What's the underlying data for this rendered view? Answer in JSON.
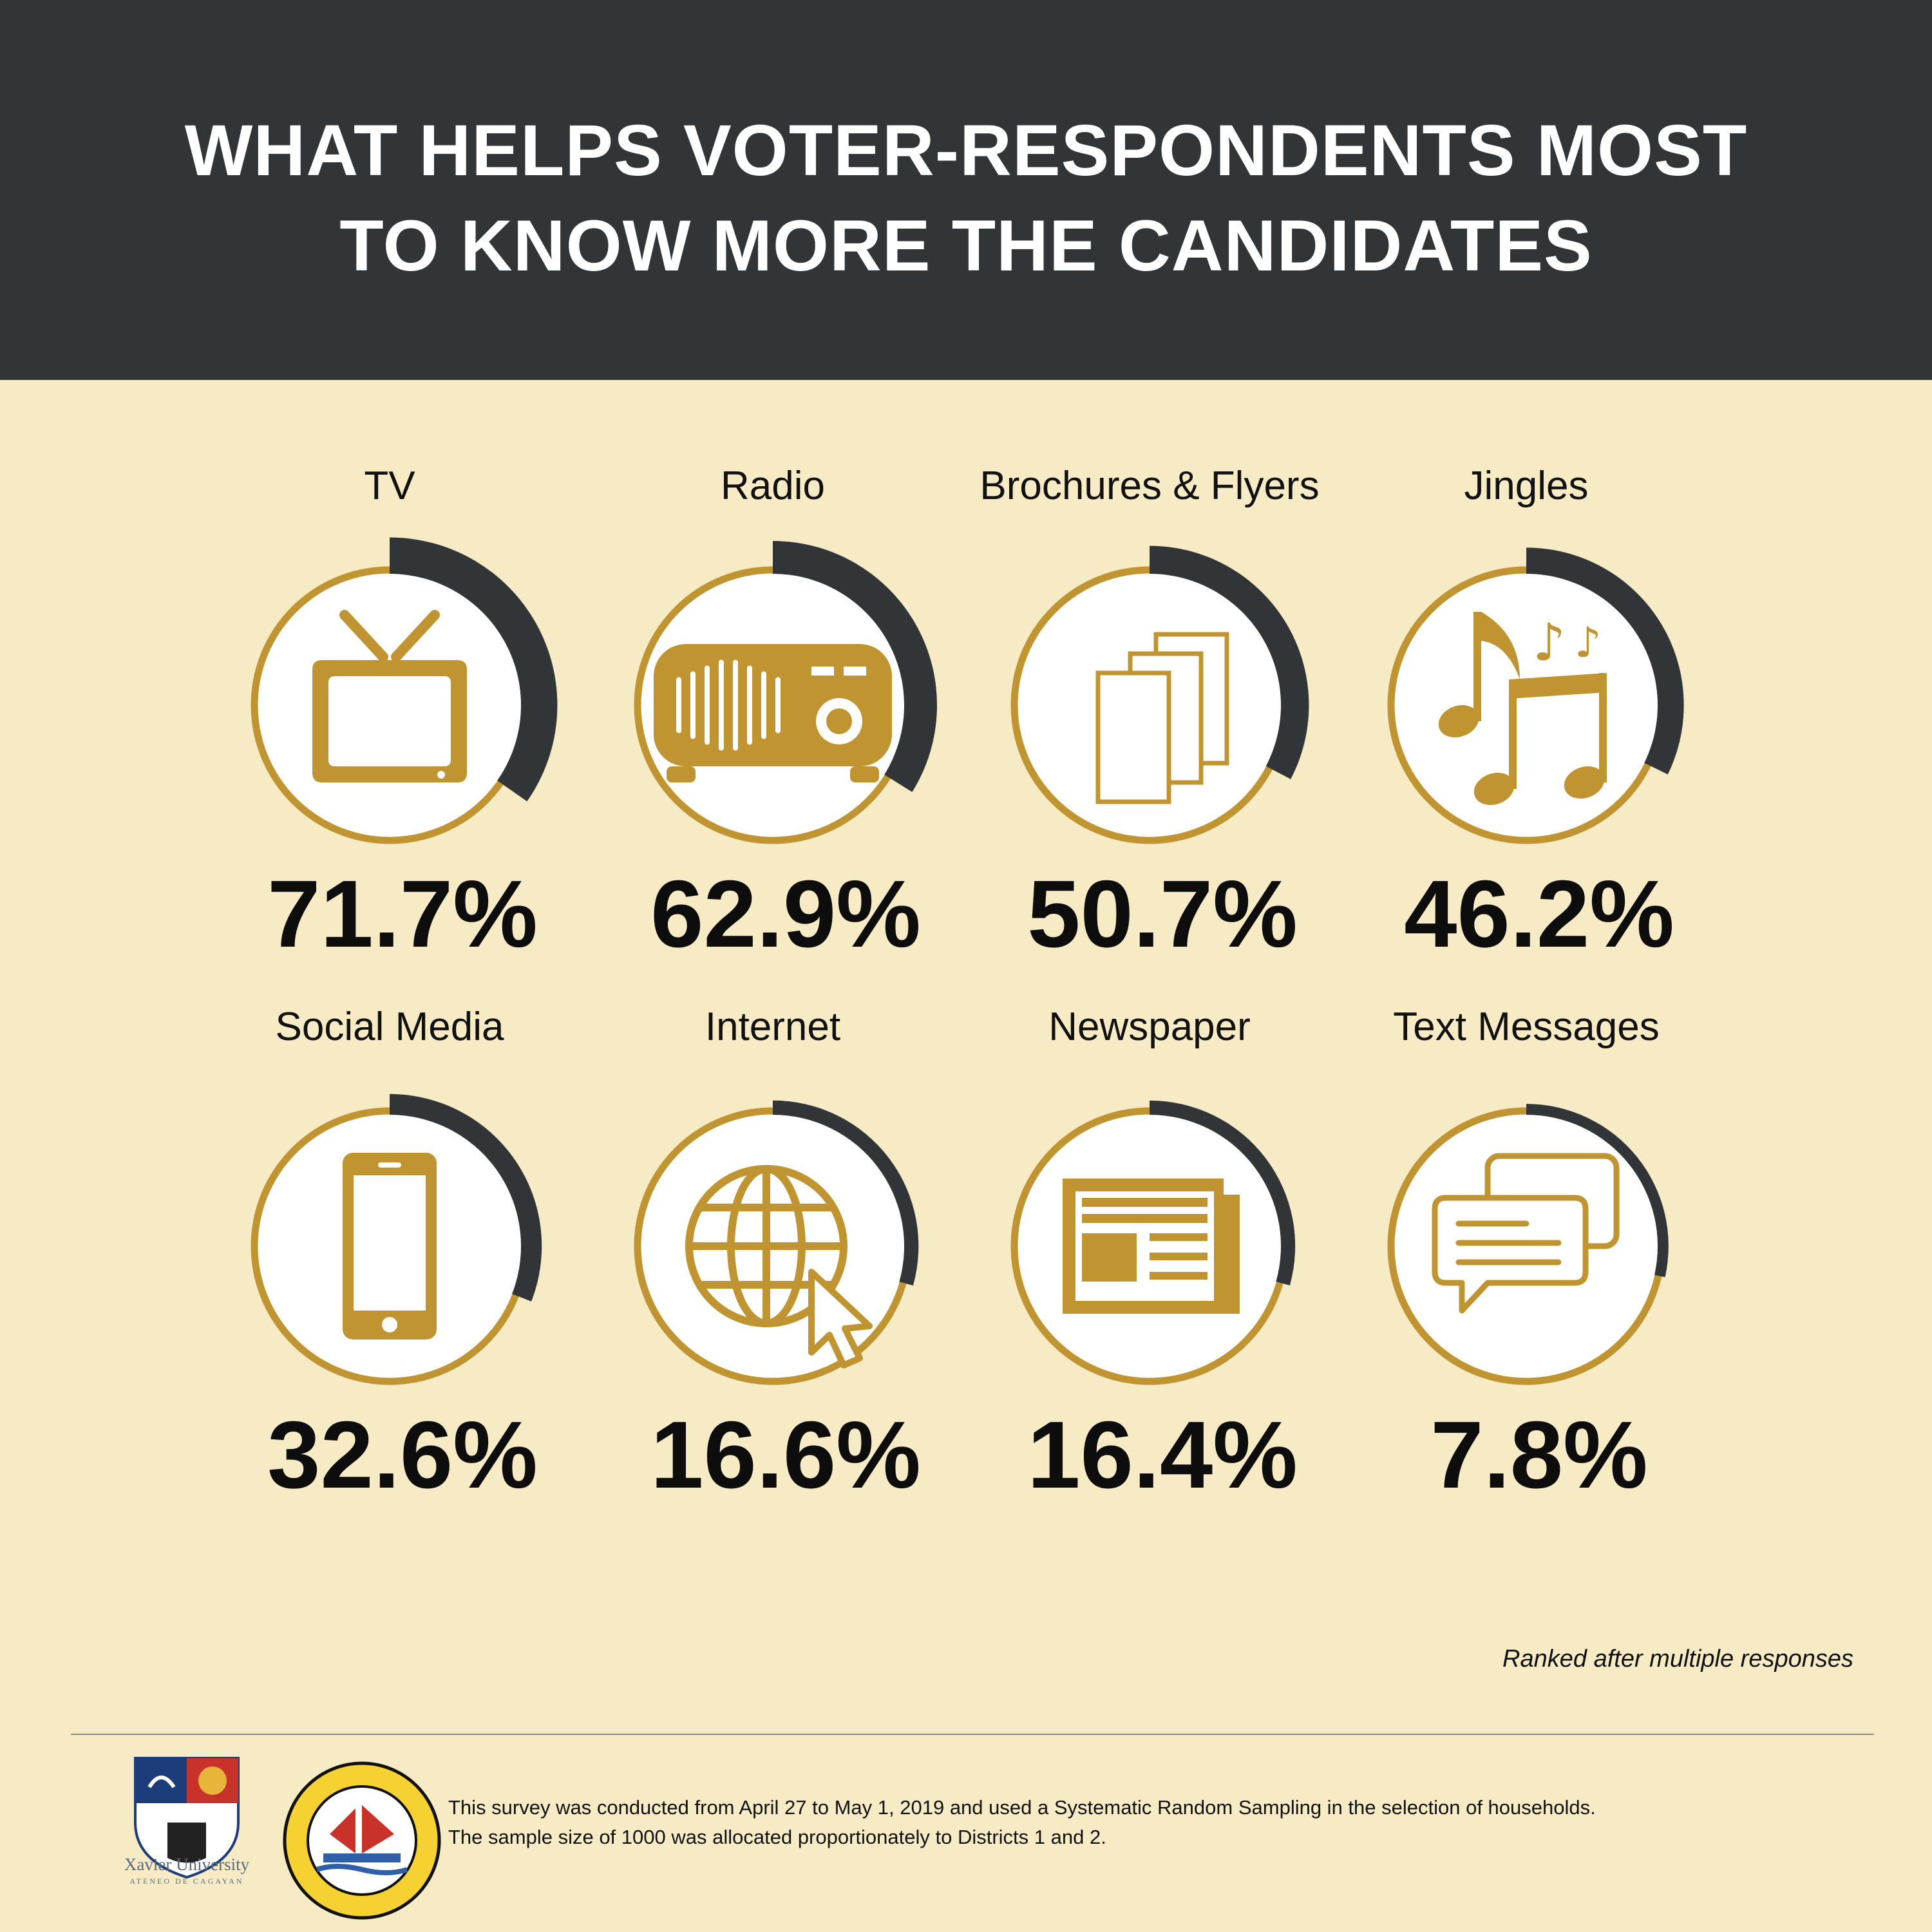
{
  "header": {
    "title_line1": "WHAT HELPS VOTER-RESPONDENTS MOST",
    "title_line2": "TO KNOW MORE THE CANDIDATES"
  },
  "chart_data": {
    "type": "bar",
    "title": "WHAT HELPS VOTER-RESPONDENTS MOST TO KNOW MORE THE CANDIDATES",
    "categories": [
      "TV",
      "Radio",
      "Brochures & Flyers",
      "Jingles",
      "Social Media",
      "Internet",
      "Newspaper",
      "Text Messages"
    ],
    "values": [
      71.7,
      62.9,
      50.7,
      46.2,
      32.6,
      16.6,
      16.4,
      7.8
    ],
    "value_labels": [
      "71.7%",
      "62.9%",
      "50.7%",
      "46.2%",
      "32.6%",
      "16.6%",
      "16.4%",
      "7.8%"
    ],
    "icons": [
      "tv-icon",
      "radio-icon",
      "brochures-icon",
      "music-notes-icon",
      "smartphone-icon",
      "globe-cursor-icon",
      "newspaper-icon",
      "chat-bubbles-icon"
    ],
    "ylim": [
      0,
      100
    ],
    "note": "Ranked after multiple responses"
  },
  "colors": {
    "header_bg": "#313538",
    "page_bg": "#f6ebc4",
    "accent_gold": "#c09431",
    "arc_dark": "#313538"
  },
  "footer": {
    "university_name": "Xavier University",
    "university_sub": "ATENEO DE CAGAYAN",
    "footnote_line1": "This survey was conducted from April 27 to May 1, 2019 and used a Systematic Random Sampling in the selection of households.",
    "footnote_line2": "The sample size of 1000 was allocated proportionately to Districts 1 and 2."
  }
}
